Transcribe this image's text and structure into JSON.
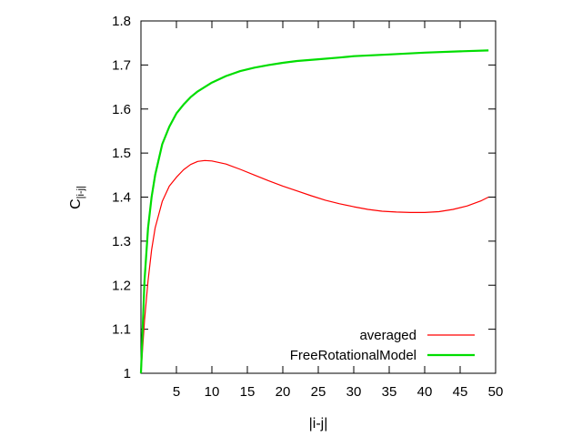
{
  "chart_data": {
    "type": "line",
    "xlabel": "|i-j|",
    "ylabel_main": "C",
    "ylabel_sub": "|i-j|",
    "xlim": [
      0,
      50
    ],
    "ylim": [
      1,
      1.8
    ],
    "xticks": [
      5,
      10,
      15,
      20,
      25,
      30,
      35,
      40,
      45,
      50
    ],
    "yticks": [
      1,
      1.1,
      1.2,
      1.3,
      1.4,
      1.5,
      1.6,
      1.7,
      1.8
    ],
    "ytick_labels": [
      "1",
      "1.1",
      "1.2",
      "1.3",
      "1.4",
      "1.5",
      "1.6",
      "1.7",
      "1.8"
    ],
    "grid": false,
    "legend_position": "bottom-right",
    "series": [
      {
        "name": "averaged",
        "color": "#ff0000",
        "x": [
          0,
          0.5,
          1,
          1.5,
          2,
          3,
          4,
          5,
          6,
          7,
          8,
          9,
          10,
          12,
          14,
          16,
          18,
          20,
          22,
          24,
          26,
          28,
          30,
          32,
          34,
          36,
          38,
          40,
          42,
          44,
          46,
          48,
          49
        ],
        "y": [
          1.0,
          1.12,
          1.21,
          1.28,
          1.33,
          1.39,
          1.425,
          1.445,
          1.462,
          1.474,
          1.481,
          1.483,
          1.482,
          1.475,
          1.463,
          1.45,
          1.437,
          1.425,
          1.414,
          1.403,
          1.393,
          1.385,
          1.378,
          1.372,
          1.368,
          1.366,
          1.365,
          1.365,
          1.367,
          1.372,
          1.38,
          1.392,
          1.4
        ]
      },
      {
        "name": "FreeRotationalModel",
        "color": "#00dd00",
        "x": [
          0,
          0.5,
          1,
          1.5,
          2,
          3,
          4,
          5,
          6,
          7,
          8,
          9,
          10,
          12,
          14,
          16,
          18,
          20,
          22,
          25,
          28,
          30,
          35,
          40,
          45,
          49
        ],
        "y": [
          1.0,
          1.21,
          1.33,
          1.4,
          1.45,
          1.52,
          1.56,
          1.59,
          1.61,
          1.627,
          1.64,
          1.65,
          1.66,
          1.675,
          1.686,
          1.694,
          1.7,
          1.705,
          1.709,
          1.713,
          1.717,
          1.72,
          1.724,
          1.728,
          1.731,
          1.733
        ]
      }
    ]
  }
}
